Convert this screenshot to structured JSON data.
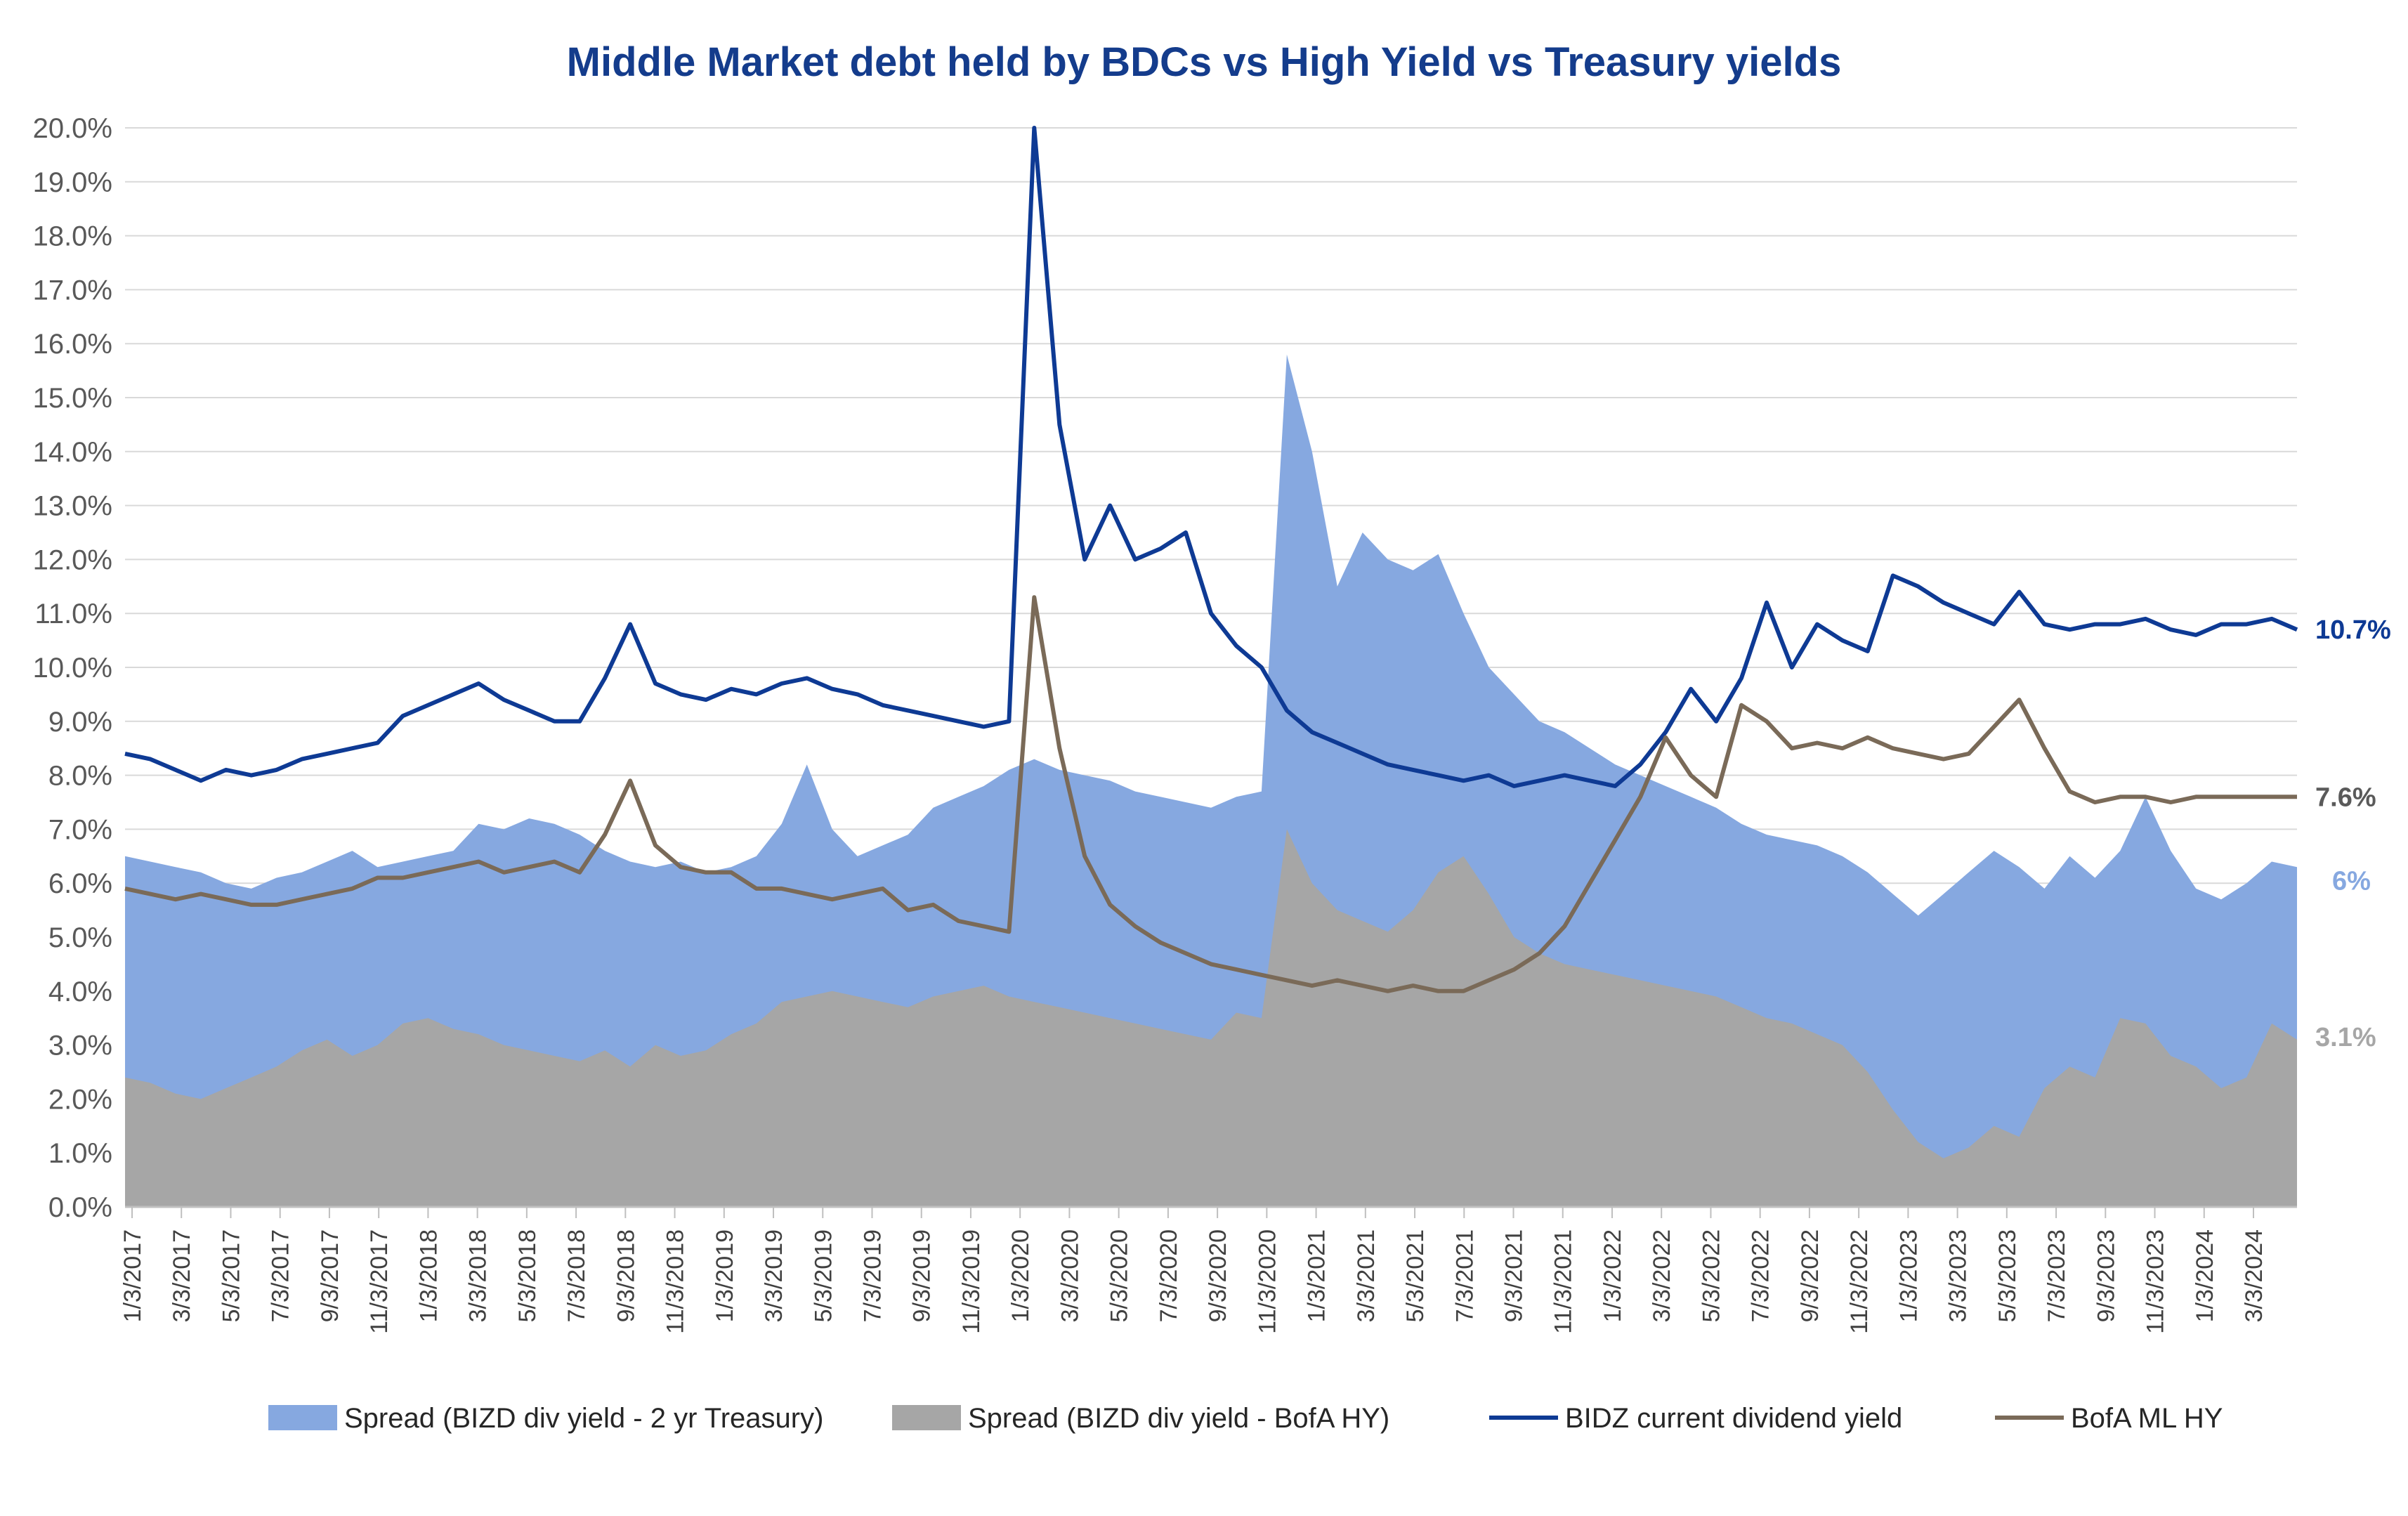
{
  "chart_data": {
    "type": "area",
    "title": "Middle Market debt held by BDCs vs High Yield vs Treasury yields",
    "xlabel": "",
    "ylabel": "",
    "ylim": [
      0,
      20
    ],
    "ytick_labels": [
      "0.0%",
      "1.0%",
      "2.0%",
      "3.0%",
      "4.0%",
      "5.0%",
      "6.0%",
      "7.0%",
      "8.0%",
      "9.0%",
      "10.0%",
      "11.0%",
      "12.0%",
      "13.0%",
      "14.0%",
      "15.0%",
      "16.0%",
      "17.0%",
      "18.0%",
      "19.0%",
      "20.0%"
    ],
    "xtick_labels": [
      "1/3/2017",
      "3/3/2017",
      "5/3/2017",
      "7/3/2017",
      "9/3/2017",
      "11/3/2017",
      "1/3/2018",
      "3/3/2018",
      "5/3/2018",
      "7/3/2018",
      "9/3/2018",
      "11/3/2018",
      "1/3/2019",
      "3/3/2019",
      "5/3/2019",
      "7/3/2019",
      "9/3/2019",
      "11/3/2019",
      "1/3/2020",
      "3/3/2020",
      "5/3/2020",
      "7/3/2020",
      "9/3/2020",
      "11/3/2020",
      "1/3/2021",
      "3/3/2021",
      "5/3/2021",
      "7/3/2021",
      "9/3/2021",
      "11/3/2021",
      "1/3/2022",
      "3/3/2022",
      "5/3/2022",
      "7/3/2022",
      "9/3/2022",
      "11/3/2022",
      "1/3/2023",
      "3/3/2023",
      "5/3/2023",
      "7/3/2023",
      "9/3/2023",
      "11/3/2023",
      "1/3/2024",
      "3/3/2024"
    ],
    "grid": true,
    "legend_position": "bottom",
    "colors": {
      "spread_treasury": "#86A8E0",
      "spread_hy": "#A6A6A6",
      "bizd_yield": "#0E3A94",
      "bofa_hy": "#7A6A58",
      "title": "#143C8C",
      "grid": "#D9D9D9"
    },
    "x": [
      0,
      1,
      2,
      3,
      4,
      5,
      6,
      7,
      8,
      9,
      10,
      11,
      12,
      13,
      14,
      15,
      16,
      17,
      18,
      19,
      20,
      21,
      22,
      23,
      24,
      25,
      26,
      27,
      28,
      29,
      30,
      31,
      32,
      33,
      34,
      35,
      36,
      37,
      38,
      39,
      40,
      41,
      42,
      43,
      44,
      45,
      46,
      47,
      48,
      49,
      50,
      51,
      52,
      53,
      54,
      55,
      56,
      57,
      58,
      59,
      60,
      61,
      62,
      63,
      64,
      65,
      66,
      67,
      68,
      69,
      70,
      71,
      72,
      73,
      74,
      75,
      76,
      77,
      78,
      79,
      80,
      81,
      82,
      83,
      84,
      85,
      86
    ],
    "series": [
      {
        "name": "Spread (BIZD div yield - 2 yr Treasury)",
        "kind": "area",
        "values": [
          6.5,
          6.4,
          6.3,
          6.2,
          6.0,
          5.9,
          6.1,
          6.2,
          6.4,
          6.6,
          6.3,
          6.4,
          6.5,
          6.6,
          7.1,
          7.0,
          7.2,
          7.1,
          6.9,
          6.6,
          6.4,
          6.3,
          6.4,
          6.2,
          6.3,
          6.5,
          7.1,
          8.2,
          7.0,
          6.5,
          6.7,
          6.9,
          7.4,
          7.6,
          7.8,
          8.1,
          8.3,
          8.1,
          8.0,
          7.9,
          7.7,
          7.6,
          7.5,
          7.4,
          7.6,
          7.7,
          15.8,
          14.0,
          11.5,
          12.5,
          12.0,
          11.8,
          12.1,
          11.0,
          10.0,
          9.5,
          9.0,
          8.8,
          8.5,
          8.2,
          8.0,
          7.8,
          7.6,
          7.4,
          7.1,
          6.9,
          6.8,
          6.7,
          6.5,
          6.2,
          5.8,
          5.4,
          5.8,
          6.2,
          6.6,
          6.3,
          5.9,
          6.5,
          6.1,
          6.6,
          7.6,
          6.6,
          5.9,
          5.7,
          6.0,
          6.4,
          6.3
        ]
      },
      {
        "name": "Spread (BIZD div yield - BofA HY)",
        "kind": "area",
        "values": [
          2.4,
          2.3,
          2.1,
          2.0,
          2.2,
          2.4,
          2.6,
          2.9,
          3.1,
          2.8,
          3.0,
          3.4,
          3.5,
          3.3,
          3.2,
          3.0,
          2.9,
          2.8,
          2.7,
          2.9,
          2.6,
          3.0,
          2.8,
          2.9,
          3.2,
          3.4,
          3.8,
          3.9,
          4.0,
          3.9,
          3.8,
          3.7,
          3.9,
          4.0,
          4.1,
          3.9,
          3.8,
          3.7,
          3.6,
          3.5,
          3.4,
          3.3,
          3.2,
          3.1,
          3.6,
          3.5,
          7.0,
          6.0,
          5.5,
          5.3,
          5.1,
          5.5,
          6.2,
          6.5,
          5.8,
          5.0,
          4.7,
          4.5,
          4.4,
          4.3,
          4.2,
          4.1,
          4.0,
          3.9,
          3.7,
          3.5,
          3.4,
          3.2,
          3.0,
          2.5,
          1.8,
          1.2,
          0.9,
          1.1,
          1.5,
          1.3,
          2.2,
          2.6,
          2.4,
          3.5,
          3.4,
          2.8,
          2.6,
          2.2,
          2.4,
          3.4,
          3.1
        ]
      },
      {
        "name": "BIDZ current dividend yield",
        "kind": "line",
        "values": [
          8.4,
          8.3,
          8.1,
          7.9,
          8.1,
          8.0,
          8.1,
          8.3,
          8.4,
          8.5,
          8.6,
          9.1,
          9.3,
          9.5,
          9.7,
          9.4,
          9.2,
          9.0,
          9.0,
          9.8,
          10.8,
          9.7,
          9.5,
          9.4,
          9.6,
          9.5,
          9.7,
          9.8,
          9.6,
          9.5,
          9.3,
          9.2,
          9.1,
          9.0,
          8.9,
          9.0,
          20.0,
          14.5,
          12.0,
          13.0,
          12.0,
          12.2,
          12.5,
          11.0,
          10.4,
          10.0,
          9.2,
          8.8,
          8.6,
          8.4,
          8.2,
          8.1,
          8.0,
          7.9,
          8.0,
          7.8,
          7.9,
          8.0,
          7.9,
          7.8,
          8.2,
          8.8,
          9.6,
          9.0,
          9.8,
          11.2,
          10.0,
          10.8,
          10.5,
          10.3,
          11.7,
          11.5,
          11.2,
          11.0,
          10.8,
          11.4,
          10.8,
          10.7,
          10.8,
          10.8,
          10.9,
          10.7,
          10.6,
          10.8,
          10.8,
          10.9,
          10.7
        ]
      },
      {
        "name": "BofA ML HY",
        "kind": "line",
        "values": [
          5.9,
          5.8,
          5.7,
          5.8,
          5.7,
          5.6,
          5.6,
          5.7,
          5.8,
          5.9,
          6.1,
          6.1,
          6.2,
          6.3,
          6.4,
          6.2,
          6.3,
          6.4,
          6.2,
          6.9,
          7.9,
          6.7,
          6.3,
          6.2,
          6.2,
          5.9,
          5.9,
          5.8,
          5.7,
          5.8,
          5.9,
          5.5,
          5.6,
          5.3,
          5.2,
          5.1,
          11.3,
          8.5,
          6.5,
          5.6,
          5.2,
          4.9,
          4.7,
          4.5,
          4.4,
          4.3,
          4.2,
          4.1,
          4.2,
          4.1,
          4.0,
          4.1,
          4.0,
          4.0,
          4.2,
          4.4,
          4.7,
          5.2,
          6.0,
          6.8,
          7.6,
          8.7,
          8.0,
          7.6,
          9.3,
          9.0,
          8.5,
          8.6,
          8.5,
          8.7,
          8.5,
          8.4,
          8.3,
          8.4,
          8.9,
          9.4,
          8.5,
          7.7,
          7.5,
          7.6,
          7.6,
          7.5,
          7.6,
          7.6,
          7.6,
          7.6,
          7.6
        ]
      }
    ],
    "end_labels": {
      "bizd_yield": "10.7%",
      "bofa_hy": "7.6%",
      "spread_treasury": "6%",
      "spread_hy": "3.1%"
    }
  }
}
